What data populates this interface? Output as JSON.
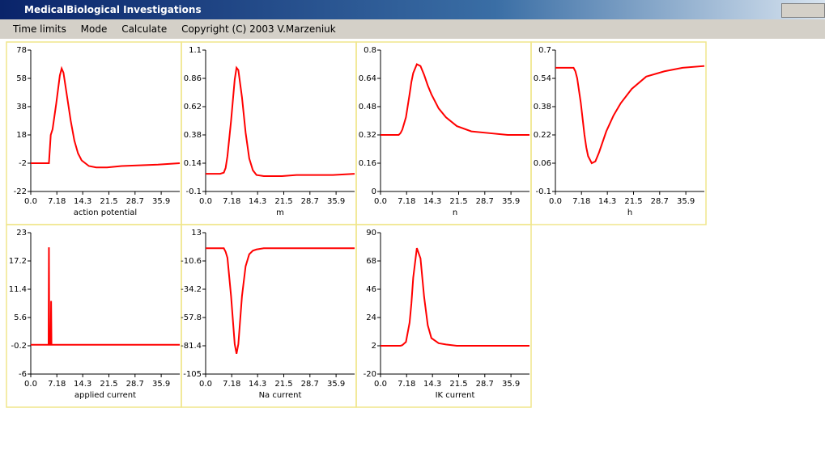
{
  "window": {
    "title": "MedicalBiological Investigations"
  },
  "menu": [
    "Time limits",
    "Mode",
    "Calculate",
    "Copyright (C) 2003 V.Marzeniuk"
  ],
  "chart_data": [
    {
      "type": "line",
      "xlabel": "action potential",
      "x": [
        0,
        2,
        4,
        5,
        5.5,
        6,
        7,
        8,
        8.5,
        9,
        10,
        11,
        12,
        13,
        14,
        16,
        18,
        21,
        25,
        30,
        35,
        41
      ],
      "series": [
        {
          "color": "#ff0000",
          "values": [
            -2,
            -2,
            -2,
            -2,
            18,
            22,
            40,
            60,
            65,
            62,
            45,
            28,
            14,
            5,
            0,
            -4,
            -5,
            -5,
            -4,
            -3.5,
            -3,
            -2
          ]
        }
      ],
      "xlim": [
        0,
        41
      ],
      "xticks": [
        {
          "value": 0,
          "label": "0.0"
        },
        7.18,
        14.3,
        21.5,
        28.7,
        35.9
      ],
      "ylim": [
        -22,
        78
      ],
      "yticks": [
        -22,
        -2,
        18,
        38,
        58,
        78
      ]
    },
    {
      "type": "line",
      "xlabel": "m",
      "x": [
        0,
        2,
        4,
        5,
        5.5,
        6,
        7,
        8,
        8.5,
        9,
        10,
        11,
        12,
        13,
        14,
        16,
        18,
        21,
        25,
        30,
        35,
        41
      ],
      "series": [
        {
          "color": "#ff0000",
          "values": [
            0.05,
            0.05,
            0.05,
            0.06,
            0.1,
            0.2,
            0.5,
            0.85,
            0.95,
            0.93,
            0.7,
            0.4,
            0.18,
            0.08,
            0.04,
            0.03,
            0.03,
            0.03,
            0.04,
            0.04,
            0.04,
            0.05
          ]
        }
      ],
      "xlim": [
        0,
        41
      ],
      "xticks": [
        {
          "value": 0,
          "label": "0.0"
        },
        7.18,
        14.3,
        21.5,
        28.7,
        35.9
      ],
      "ylim": [
        -0.1,
        1.1
      ],
      "yticks": [
        -0.1,
        0.14,
        0.38,
        0.62,
        0.86,
        1.1
      ]
    },
    {
      "type": "line",
      "xlabel": "n",
      "x": [
        0,
        2,
        4,
        5,
        5.5,
        6,
        7,
        8,
        8.5,
        9,
        10,
        11,
        12,
        13,
        14,
        16,
        18,
        21,
        25,
        30,
        35,
        41
      ],
      "series": [
        {
          "color": "#ff0000",
          "values": [
            0.32,
            0.32,
            0.32,
            0.32,
            0.33,
            0.35,
            0.42,
            0.55,
            0.62,
            0.67,
            0.72,
            0.71,
            0.66,
            0.6,
            0.55,
            0.47,
            0.42,
            0.37,
            0.34,
            0.33,
            0.32,
            0.32
          ]
        }
      ],
      "xlim": [
        0,
        41
      ],
      "xticks": [
        {
          "value": 0,
          "label": "0.0"
        },
        7.18,
        14.3,
        21.5,
        28.7,
        35.9
      ],
      "ylim": [
        0,
        0.8
      ],
      "yticks": [
        0,
        0.16,
        0.32,
        0.48,
        0.64,
        0.8
      ]
    },
    {
      "type": "line",
      "xlabel": "h",
      "x": [
        0,
        2,
        4,
        5,
        5.5,
        6,
        7,
        8,
        8.5,
        9,
        10,
        11,
        12,
        13,
        14,
        16,
        18,
        21,
        25,
        30,
        35,
        41
      ],
      "series": [
        {
          "color": "#ff0000",
          "values": [
            0.6,
            0.6,
            0.6,
            0.6,
            0.58,
            0.54,
            0.4,
            0.22,
            0.15,
            0.1,
            0.06,
            0.07,
            0.12,
            0.18,
            0.24,
            0.33,
            0.4,
            0.48,
            0.55,
            0.58,
            0.6,
            0.61
          ]
        }
      ],
      "xlim": [
        0,
        41
      ],
      "xticks": [
        {
          "value": 0,
          "label": "0.0"
        },
        7.18,
        14.3,
        21.5,
        28.7,
        35.9
      ],
      "ylim": [
        -0.1,
        0.7
      ],
      "yticks": [
        -0.1,
        0.06,
        0.22,
        0.38,
        0.54,
        0.7
      ]
    },
    {
      "type": "line",
      "xlabel": "applied current",
      "x": [
        0,
        4.9,
        5,
        5.1,
        5.5,
        5.6,
        5.7,
        41
      ],
      "series": [
        {
          "color": "#ff0000",
          "values": [
            0,
            0,
            20,
            0,
            0,
            9,
            0,
            0
          ]
        }
      ],
      "xlim": [
        0,
        41
      ],
      "xticks": [
        {
          "value": 0,
          "label": "0.0"
        },
        7.18,
        14.3,
        21.5,
        28.7,
        35.9
      ],
      "ylim": [
        -6,
        23
      ],
      "yticks": [
        -6,
        -0.2,
        5.6,
        11.4,
        17.2,
        23
      ]
    },
    {
      "type": "line",
      "xlabel": "Na current",
      "x": [
        0,
        2,
        4,
        5,
        5.5,
        6,
        7,
        8,
        8.5,
        9,
        10,
        11,
        12,
        13,
        14,
        16,
        18,
        21,
        25,
        30,
        35,
        41
      ],
      "series": [
        {
          "color": "#ff0000",
          "values": [
            0,
            0,
            0,
            0,
            -3,
            -8,
            -40,
            -80,
            -88,
            -80,
            -40,
            -15,
            -5,
            -2,
            -1,
            0,
            0,
            0,
            0,
            0,
            0,
            0
          ]
        }
      ],
      "xlim": [
        0,
        41
      ],
      "xticks": [
        {
          "value": 0,
          "label": "0.0"
        },
        7.18,
        14.3,
        21.5,
        28.7,
        35.9
      ],
      "ylim": [
        -105,
        13
      ],
      "yticks": [
        -105,
        -81.4,
        -57.8,
        -34.2,
        -10.6,
        13
      ]
    },
    {
      "type": "line",
      "xlabel": "IK current",
      "x": [
        0,
        2,
        4,
        5,
        5.5,
        6,
        7,
        8,
        8.5,
        9,
        10,
        11,
        12,
        13,
        14,
        16,
        18,
        21,
        25,
        30,
        35,
        41
      ],
      "series": [
        {
          "color": "#ff0000",
          "values": [
            2,
            2,
            2,
            2,
            2,
            2.5,
            5,
            20,
            35,
            55,
            78,
            70,
            40,
            18,
            8,
            4,
            3,
            2,
            2,
            2,
            2,
            2
          ]
        }
      ],
      "xlim": [
        0,
        41
      ],
      "xticks": [
        {
          "value": 0,
          "label": "0.0"
        },
        7.18,
        14.3,
        21.5,
        28.7,
        35.9
      ],
      "ylim": [
        -20,
        90
      ],
      "yticks": [
        -20,
        2,
        24,
        46,
        68,
        90
      ]
    }
  ]
}
